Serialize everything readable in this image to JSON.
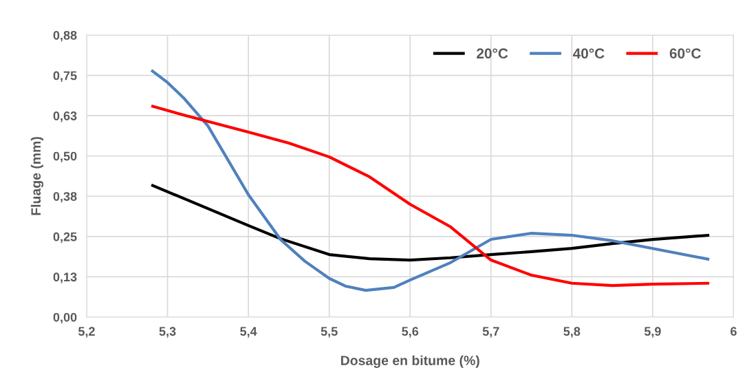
{
  "chart_data": {
    "type": "line",
    "xlabel": "Dosage en bitume (%)",
    "ylabel": "Fluage (mm)",
    "xlim": [
      5.2,
      6
    ],
    "xticks": [
      {
        "value": 5.2,
        "label": "5,2"
      },
      {
        "value": 5.3,
        "label": "5,3"
      },
      {
        "value": 5.4,
        "label": "5,4"
      },
      {
        "value": 5.5,
        "label": "5,5"
      },
      {
        "value": 5.6,
        "label": "5,6"
      },
      {
        "value": 5.7,
        "label": "5,7"
      },
      {
        "value": 5.8,
        "label": "5,8"
      },
      {
        "value": 5.9,
        "label": "5,9"
      },
      6
    ],
    "ylim": [
      0,
      0.875
    ],
    "yticks": [
      {
        "value": 0,
        "label": "0,00"
      },
      {
        "value": 0.125,
        "label": "0,13"
      },
      {
        "value": 0.25,
        "label": "0,25"
      },
      {
        "value": 0.375,
        "label": "0,38"
      },
      {
        "value": 0.5,
        "label": "0,50"
      },
      {
        "value": 0.625,
        "label": "0,63"
      },
      {
        "value": 0.75,
        "label": "0,75"
      },
      {
        "value": 0.875,
        "label": "0,88"
      }
    ],
    "grid": true,
    "legend": "top right",
    "marker": "none",
    "line_style": "solid",
    "series": [
      {
        "name": "20°C",
        "color": "#000000",
        "x": [
          5.28,
          5.4,
          5.44,
          5.5,
          5.55,
          5.6,
          5.65,
          5.7,
          5.75,
          5.8,
          5.85,
          5.9,
          5.97
        ],
        "values": [
          0.41,
          0.284,
          0.243,
          0.194,
          0.181,
          0.177,
          0.184,
          0.194,
          0.203,
          0.213,
          0.228,
          0.241,
          0.254
        ]
      },
      {
        "name": "40°C",
        "color": "#4f81bd",
        "x": [
          5.28,
          5.3,
          5.32,
          5.35,
          5.4,
          5.44,
          5.47,
          5.5,
          5.52,
          5.545,
          5.58,
          5.6,
          5.65,
          5.7,
          5.75,
          5.8,
          5.85,
          5.9,
          5.97
        ],
        "values": [
          0.766,
          0.728,
          0.68,
          0.593,
          0.38,
          0.24,
          0.173,
          0.12,
          0.096,
          0.083,
          0.092,
          0.115,
          0.169,
          0.241,
          0.26,
          0.254,
          0.237,
          0.213,
          0.179
        ]
      },
      {
        "name": "60°C",
        "color": "#ff0000",
        "x": [
          5.28,
          5.32,
          5.4,
          5.45,
          5.5,
          5.55,
          5.6,
          5.65,
          5.7,
          5.75,
          5.8,
          5.85,
          5.9,
          5.97
        ],
        "values": [
          0.655,
          0.627,
          0.574,
          0.54,
          0.497,
          0.435,
          0.35,
          0.28,
          0.177,
          0.13,
          0.105,
          0.098,
          0.102,
          0.105
        ]
      }
    ]
  }
}
